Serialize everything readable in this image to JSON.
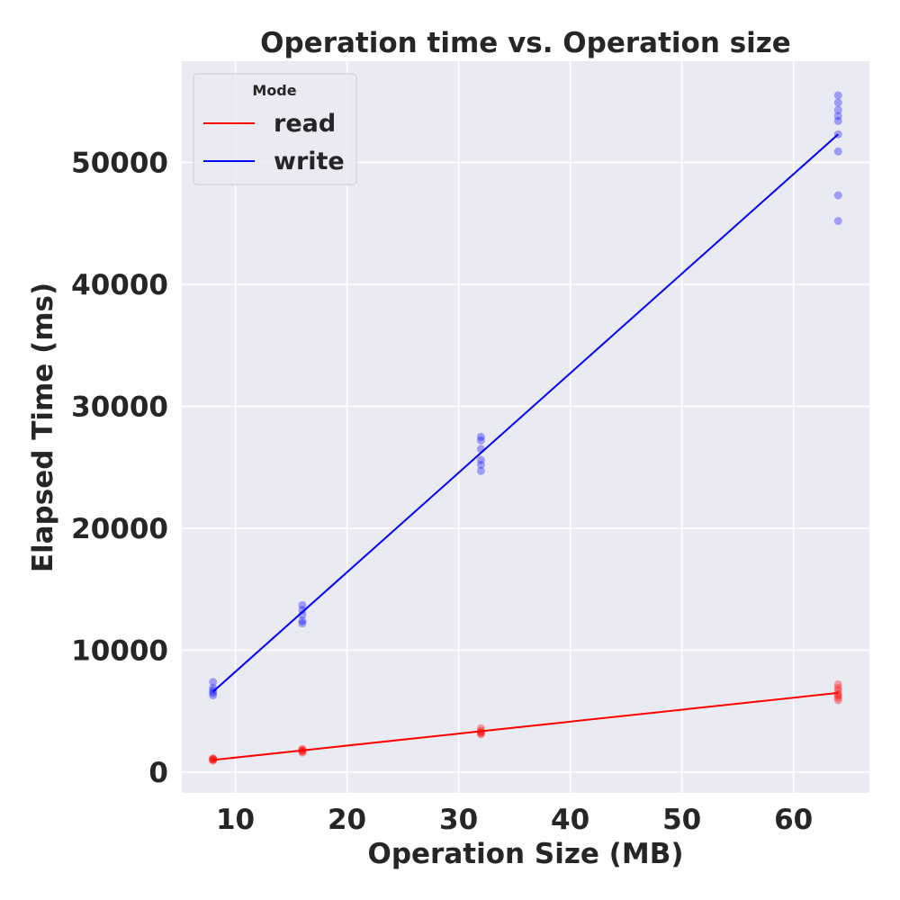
{
  "chart_data": {
    "type": "scatter",
    "title": "Operation time vs. Operation size",
    "xlabel": "Operation Size (MB)",
    "ylabel": "Elapsed Time (ms)",
    "xlim": [
      5.2,
      66.8
    ],
    "ylim": [
      -1700,
      58300
    ],
    "xticks": [
      10,
      20,
      30,
      40,
      50,
      60
    ],
    "yticks": [
      0,
      10000,
      20000,
      30000,
      40000,
      50000
    ],
    "grid": true,
    "legend": {
      "title": "Mode",
      "placement": "top-left"
    },
    "series": [
      {
        "name": "read",
        "color": "#ff0000",
        "points": [
          [
            8,
            1050
          ],
          [
            8,
            1100
          ],
          [
            8,
            950
          ],
          [
            8,
            1000
          ],
          [
            8,
            1120
          ],
          [
            16,
            1600
          ],
          [
            16,
            1750
          ],
          [
            16,
            1850
          ],
          [
            16,
            1900
          ],
          [
            16,
            1700
          ],
          [
            32,
            3100
          ],
          [
            32,
            3250
          ],
          [
            32,
            3400
          ],
          [
            32,
            3600
          ],
          [
            32,
            3200
          ],
          [
            64,
            5900
          ],
          [
            64,
            6100
          ],
          [
            64,
            6400
          ],
          [
            64,
            6700
          ],
          [
            64,
            6900
          ],
          [
            64,
            7200
          ],
          [
            64,
            6300
          ]
        ],
        "fit": [
          [
            8,
            1000
          ],
          [
            64,
            6500
          ]
        ]
      },
      {
        "name": "write",
        "color": "#0000ff",
        "points": [
          [
            8,
            6300
          ],
          [
            8,
            6500
          ],
          [
            8,
            6700
          ],
          [
            8,
            6900
          ],
          [
            8,
            7400
          ],
          [
            16,
            12200
          ],
          [
            16,
            12400
          ],
          [
            16,
            12900
          ],
          [
            16,
            13300
          ],
          [
            16,
            13700
          ],
          [
            32,
            24700
          ],
          [
            32,
            25200
          ],
          [
            32,
            25600
          ],
          [
            32,
            26500
          ],
          [
            32,
            27200
          ],
          [
            32,
            27500
          ],
          [
            64,
            45200
          ],
          [
            64,
            47300
          ],
          [
            64,
            50900
          ],
          [
            64,
            52300
          ],
          [
            64,
            53400
          ],
          [
            64,
            53800
          ],
          [
            64,
            54300
          ],
          [
            64,
            54900
          ],
          [
            64,
            55500
          ]
        ],
        "fit": [
          [
            8,
            6600
          ],
          [
            64,
            52300
          ]
        ]
      }
    ]
  }
}
